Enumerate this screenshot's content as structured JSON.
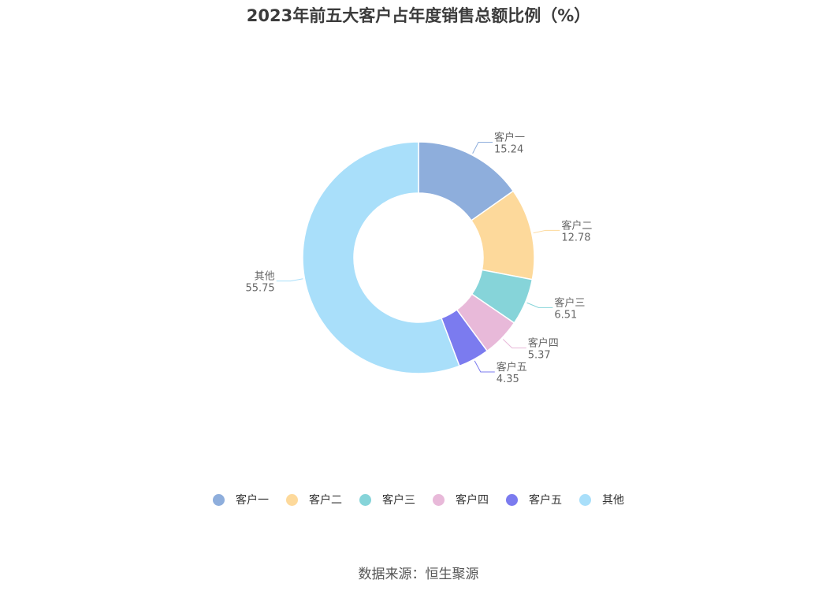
{
  "chart_data": {
    "type": "pie",
    "style": "donut",
    "title": "2023年前五大客户占年度销售总额比例（%）",
    "categories": [
      "客户一",
      "客户二",
      "客户三",
      "客户四",
      "客户五",
      "其他"
    ],
    "values": [
      15.24,
      12.78,
      6.51,
      5.37,
      4.35,
      55.75
    ],
    "value_labels": [
      "15.24",
      "12.78",
      "6.51",
      "5.37",
      "4.35",
      "55.75"
    ],
    "colors": [
      "#8eaedc",
      "#fdd99b",
      "#86d4d9",
      "#e8b9d9",
      "#7b7bef",
      "#a9dffa"
    ],
    "legend_position": "bottom"
  },
  "source": "数据来源：恒生聚源"
}
